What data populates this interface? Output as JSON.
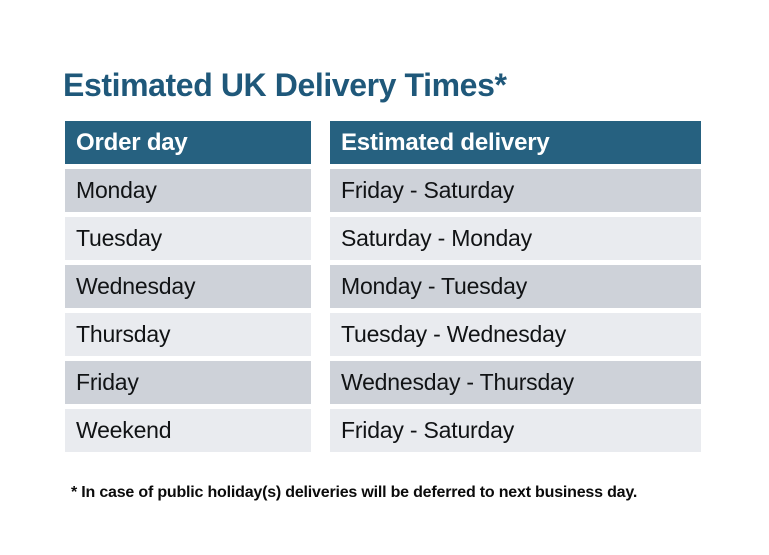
{
  "page": {
    "title": "Estimated UK Delivery Times*",
    "footnote": "* In case of public holiday(s) deliveries will be deferred to next business day."
  },
  "table": {
    "headers": [
      "Order day",
      "Estimated delivery"
    ],
    "rows": [
      [
        "Monday",
        "Friday - Saturday"
      ],
      [
        "Tuesday",
        "Saturday - Monday"
      ],
      [
        "Wednesday",
        "Monday - Tuesday"
      ],
      [
        "Thursday",
        "Tuesday - Wednesday"
      ],
      [
        "Friday",
        "Wednesday - Thursday"
      ],
      [
        "Weekend",
        "Friday - Saturday"
      ]
    ]
  },
  "colors": {
    "header_background": "#266180",
    "title_text": "#1F587A",
    "header_text": "#FFFFFF",
    "row_dark": "#CED2D9",
    "row_light": "#E9EBEF",
    "body_text": "#111315"
  }
}
